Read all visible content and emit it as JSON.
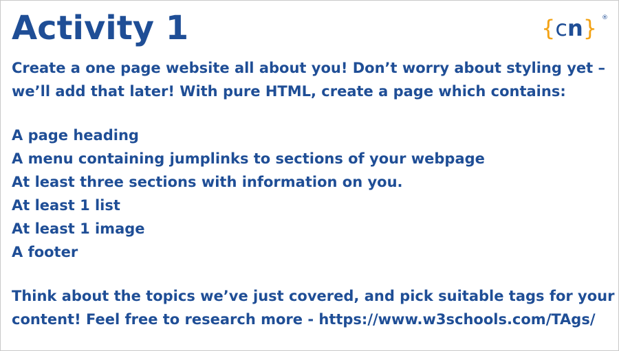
{
  "title": "Activity 1",
  "logo": {
    "open_brace": "{",
    "letter_c": "c",
    "letter_n": "n",
    "close_brace": "}",
    "registered_mark": "®"
  },
  "intro": [
    "Create a one page website all about you! Don’t worry about styling yet –",
    "we’ll add that later! With pure HTML, create a page which contains:"
  ],
  "requirements": [
    "A page heading",
    "A menu containing jumplinks to sections of your webpage",
    "At least three sections with information on you.",
    "At least 1 list",
    "At least 1 image",
    "A footer"
  ],
  "outro": [
    "Think about the topics we’ve just covered, and pick suitable tags for your",
    "content! Feel free to research more - https://www.w3schools.com/TAgs/"
  ],
  "colors": {
    "text": "#1f4e96",
    "brace_accent": "#f3a316",
    "background": "#ffffff"
  }
}
